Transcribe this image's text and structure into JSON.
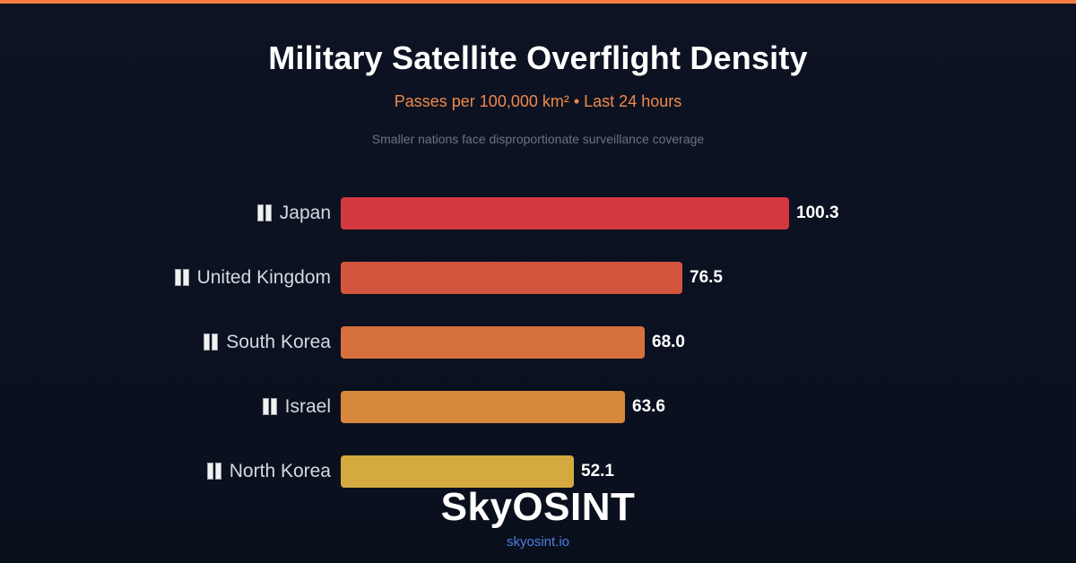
{
  "header": {
    "title": "Military Satellite Overflight Density",
    "subtitle": "Passes per 100,000 km² • Last 24 hours",
    "note": "Smaller nations face disproportionate surveillance coverage"
  },
  "brand": {
    "name": "SkyOSINT",
    "url": "skyosint.io"
  },
  "colors": {
    "accent_top_bar": "#f47c43",
    "subtitle": "#f0894a",
    "url": "#4f7fe0",
    "background": "#0b1120"
  },
  "chart_data": {
    "type": "bar",
    "orientation": "horizontal",
    "title": "Military Satellite Overflight Density",
    "subtitle": "Passes per 100,000 km² • Last 24 hours",
    "categories": [
      "Japan",
      "United Kingdom",
      "South Korea",
      "Israel",
      "North Korea"
    ],
    "values": [
      100.3,
      76.5,
      68.0,
      63.6,
      52.1
    ],
    "value_labels": [
      "100.3",
      "76.5",
      "68.0",
      "63.6",
      "52.1"
    ],
    "bar_colors": [
      "#d2383f",
      "#d3553e",
      "#d6703c",
      "#d6883c",
      "#d4a93f"
    ],
    "xlim": [
      0,
      100.3
    ],
    "grid": false,
    "legend": "none"
  }
}
